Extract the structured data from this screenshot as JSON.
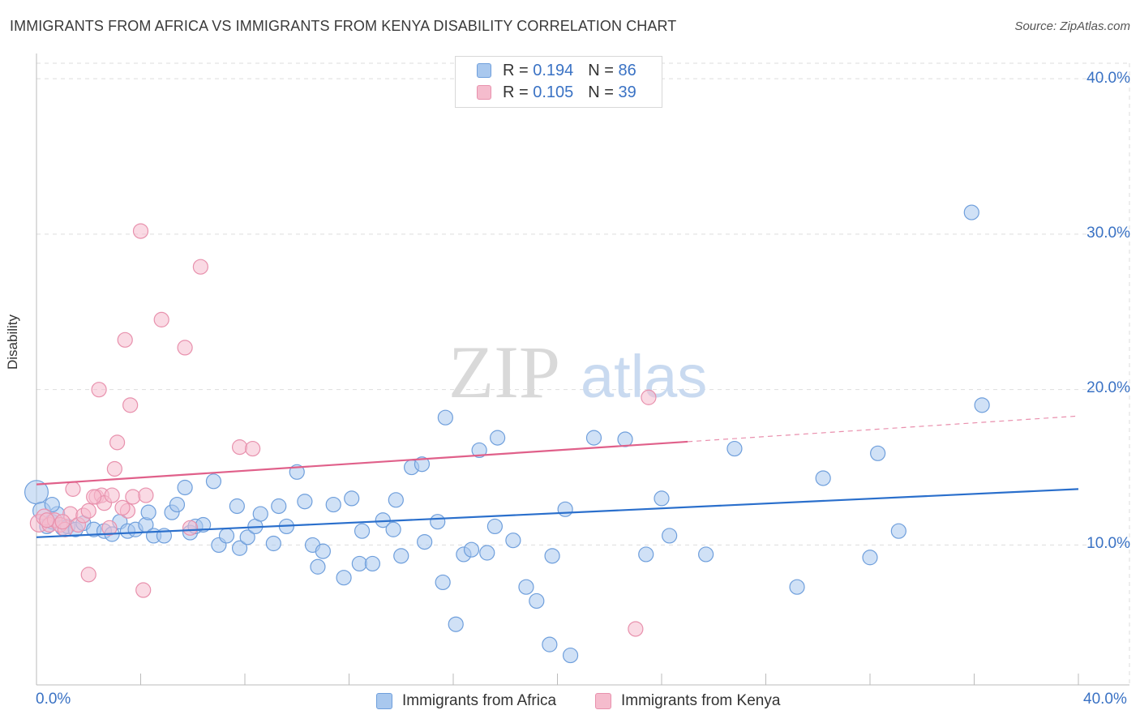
{
  "title": "IMMIGRANTS FROM AFRICA VS IMMIGRANTS FROM KENYA DISABILITY CORRELATION CHART",
  "source": "Source: ZipAtlas.com",
  "watermark": {
    "zip": "ZIP",
    "atlas": "atlas"
  },
  "legend": {
    "r_label": "R =",
    "n_label": "N =",
    "africa": {
      "r": "0.194",
      "n": "86"
    },
    "kenya": {
      "r": "0.105",
      "n": "39"
    }
  },
  "colors": {
    "africa_fill": "#a9c8ee",
    "africa_stroke": "#6f9fdc",
    "africa_line": "#2a6fcc",
    "kenya_fill": "#f5bccd",
    "kenya_stroke": "#e891ad",
    "kenya_line": "#e0608a",
    "tick_text": "#3a72c4",
    "grid": "#dddddd"
  },
  "chart_data": {
    "type": "scatter",
    "title": "IMMIGRANTS FROM AFRICA VS IMMIGRANTS FROM KENYA DISABILITY CORRELATION CHART",
    "xlabel": "",
    "ylabel": "Disability",
    "xlim": [
      0,
      40
    ],
    "ylim": [
      1,
      41
    ],
    "x_tick_labels": [
      "0.0%",
      "40.0%"
    ],
    "y_ticks": [
      10,
      20,
      30,
      40
    ],
    "y_tick_labels": [
      "10.0%",
      "20.0%",
      "30.0%",
      "40.0%"
    ],
    "grid": true,
    "legend_position": "top-center",
    "series": [
      {
        "name": "Immigrants from Africa",
        "r": 0.194,
        "n": 86,
        "trend": {
          "x": [
            0,
            40
          ],
          "y": [
            10.5,
            13.6
          ],
          "dashed_from": null
        },
        "points": [
          [
            0.0,
            13.4,
            1.6
          ],
          [
            0.2,
            12.2,
            1.2
          ],
          [
            0.4,
            11.2,
            1.0
          ],
          [
            0.6,
            11.5,
            1.0
          ],
          [
            0.8,
            12.0,
            1.0
          ],
          [
            1.0,
            11.1,
            1.0
          ],
          [
            1.2,
            11.2,
            1.0
          ],
          [
            1.5,
            11.0,
            1.0
          ],
          [
            1.8,
            11.4,
            1.0
          ],
          [
            2.2,
            11.0,
            1.0
          ],
          [
            2.6,
            10.9,
            1.0
          ],
          [
            2.9,
            10.7,
            1.0
          ],
          [
            3.2,
            11.5,
            1.0
          ],
          [
            3.5,
            10.9,
            1.0
          ],
          [
            3.8,
            11.0,
            1.0
          ],
          [
            4.2,
            11.3,
            1.0
          ],
          [
            4.3,
            12.1,
            1.0
          ],
          [
            4.5,
            10.6,
            1.0
          ],
          [
            4.9,
            10.6,
            1.0
          ],
          [
            5.2,
            12.1,
            1.0
          ],
          [
            5.4,
            12.6,
            1.0
          ],
          [
            5.7,
            13.7,
            1.0
          ],
          [
            5.9,
            10.8,
            1.0
          ],
          [
            6.1,
            11.2,
            1.0
          ],
          [
            6.4,
            11.3,
            1.0
          ],
          [
            6.8,
            14.1,
            1.0
          ],
          [
            7.0,
            10.0,
            1.0
          ],
          [
            7.3,
            10.6,
            1.0
          ],
          [
            7.7,
            12.5,
            1.0
          ],
          [
            7.8,
            9.8,
            1.0
          ],
          [
            8.1,
            10.5,
            1.0
          ],
          [
            8.4,
            11.2,
            1.0
          ],
          [
            8.6,
            12.0,
            1.0
          ],
          [
            9.1,
            10.1,
            1.0
          ],
          [
            9.3,
            12.5,
            1.0
          ],
          [
            9.6,
            11.2,
            1.0
          ],
          [
            10.0,
            14.7,
            1.0
          ],
          [
            10.3,
            12.8,
            1.0
          ],
          [
            10.6,
            10.0,
            1.0
          ],
          [
            10.8,
            8.6,
            1.0
          ],
          [
            11.0,
            9.6,
            1.0
          ],
          [
            11.4,
            12.6,
            1.0
          ],
          [
            11.8,
            7.9,
            1.0
          ],
          [
            12.1,
            13.0,
            1.0
          ],
          [
            12.4,
            8.8,
            1.0
          ],
          [
            12.5,
            10.9,
            1.0
          ],
          [
            12.9,
            8.8,
            1.0
          ],
          [
            13.3,
            11.6,
            1.0
          ],
          [
            13.7,
            11.0,
            1.0
          ],
          [
            13.8,
            12.9,
            1.0
          ],
          [
            14.0,
            9.3,
            1.0
          ],
          [
            14.4,
            15.0,
            1.0
          ],
          [
            14.8,
            15.2,
            1.0
          ],
          [
            14.9,
            10.2,
            1.0
          ],
          [
            15.4,
            11.5,
            1.0
          ],
          [
            15.6,
            7.6,
            1.0
          ],
          [
            15.7,
            18.2,
            1.0
          ],
          [
            16.1,
            4.9,
            1.0
          ],
          [
            16.4,
            9.4,
            1.0
          ],
          [
            16.7,
            9.7,
            1.0
          ],
          [
            17.0,
            16.1,
            1.0
          ],
          [
            17.3,
            9.5,
            1.0
          ],
          [
            17.6,
            11.2,
            1.0
          ],
          [
            17.7,
            16.9,
            1.0
          ],
          [
            18.3,
            10.3,
            1.0
          ],
          [
            18.8,
            7.3,
            1.0
          ],
          [
            19.2,
            6.4,
            1.0
          ],
          [
            19.7,
            3.6,
            1.0
          ],
          [
            19.8,
            9.3,
            1.0
          ],
          [
            20.3,
            12.3,
            1.0
          ],
          [
            20.5,
            2.9,
            1.0
          ],
          [
            21.4,
            16.9,
            1.0
          ],
          [
            22.6,
            16.8,
            1.0
          ],
          [
            23.4,
            9.4,
            1.0
          ],
          [
            24.0,
            13.0,
            1.0
          ],
          [
            24.3,
            10.6,
            1.0
          ],
          [
            25.7,
            9.4,
            1.0
          ],
          [
            26.8,
            16.2,
            1.0
          ],
          [
            29.2,
            7.3,
            1.0
          ],
          [
            30.2,
            14.3,
            1.0
          ],
          [
            32.0,
            9.2,
            1.0
          ],
          [
            32.3,
            15.9,
            1.0
          ],
          [
            33.1,
            10.9,
            1.0
          ],
          [
            35.9,
            31.4,
            1.0
          ],
          [
            36.3,
            19.0,
            1.0
          ],
          [
            0.6,
            12.6,
            1.0
          ]
        ]
      },
      {
        "name": "Immigrants from Kenya",
        "r": 0.105,
        "n": 39,
        "trend": {
          "x": [
            0,
            40
          ],
          "y": [
            13.9,
            18.3
          ],
          "dashed_from": 25.0
        },
        "points": [
          [
            0.1,
            11.4,
            1.2
          ],
          [
            0.3,
            11.8,
            1.1
          ],
          [
            0.5,
            11.3,
            1.0
          ],
          [
            0.7,
            11.6,
            1.0
          ],
          [
            0.9,
            11.3,
            1.0
          ],
          [
            1.1,
            11.0,
            1.0
          ],
          [
            1.3,
            12.0,
            1.0
          ],
          [
            1.4,
            13.6,
            1.0
          ],
          [
            1.6,
            11.3,
            1.0
          ],
          [
            1.8,
            11.9,
            1.0
          ],
          [
            2.0,
            12.2,
            1.0
          ],
          [
            2.0,
            8.1,
            1.0
          ],
          [
            2.3,
            13.1,
            1.0
          ],
          [
            2.4,
            20.0,
            1.0
          ],
          [
            2.5,
            13.2,
            1.0
          ],
          [
            2.6,
            12.7,
            1.0
          ],
          [
            2.8,
            11.1,
            1.0
          ],
          [
            2.9,
            13.2,
            1.0
          ],
          [
            3.0,
            14.9,
            1.0
          ],
          [
            3.1,
            16.6,
            1.0
          ],
          [
            3.4,
            23.2,
            1.0
          ],
          [
            3.5,
            12.2,
            1.0
          ],
          [
            3.6,
            19.0,
            1.0
          ],
          [
            3.7,
            13.1,
            1.0
          ],
          [
            4.0,
            30.2,
            1.0
          ],
          [
            4.1,
            7.1,
            1.0
          ],
          [
            4.2,
            13.2,
            1.0
          ],
          [
            4.8,
            24.5,
            1.0
          ],
          [
            5.7,
            22.7,
            1.0
          ],
          [
            5.9,
            11.1,
            1.0
          ],
          [
            6.3,
            27.9,
            1.0
          ],
          [
            7.8,
            16.3,
            1.0
          ],
          [
            8.3,
            16.2,
            1.0
          ],
          [
            23.5,
            19.5,
            1.0
          ],
          [
            23.0,
            4.6,
            1.0
          ],
          [
            0.4,
            11.6,
            1.0
          ],
          [
            1.0,
            11.5,
            1.0
          ],
          [
            2.2,
            13.1,
            1.0
          ],
          [
            3.3,
            12.4,
            1.0
          ]
        ]
      }
    ]
  },
  "bottom_legend": {
    "africa_label": "Immigrants from Africa",
    "kenya_label": "Immigrants from Kenya"
  }
}
